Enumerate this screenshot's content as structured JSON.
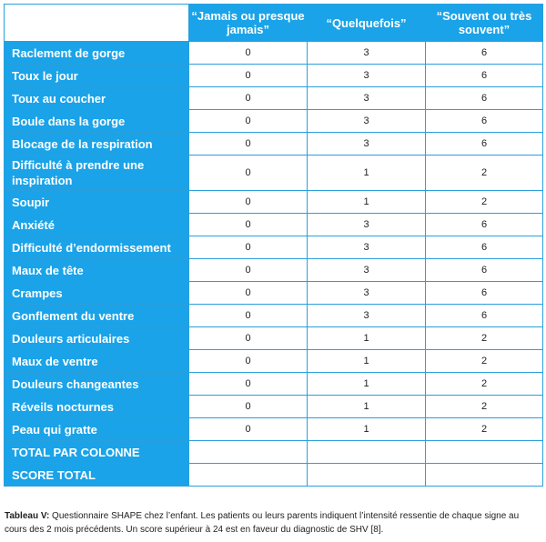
{
  "table": {
    "headers": [
      "",
      "“Jamais ou presque jamais”",
      "“Quelquefois”",
      "“Souvent ou très souvent”"
    ],
    "rows": [
      {
        "label": "Raclement de gorge",
        "values": [
          "0",
          "3",
          "6"
        ]
      },
      {
        "label": "Toux le jour",
        "values": [
          "0",
          "3",
          "6"
        ]
      },
      {
        "label": "Toux au coucher",
        "values": [
          "0",
          "3",
          "6"
        ]
      },
      {
        "label": "Boule dans la gorge",
        "values": [
          "0",
          "3",
          "6"
        ]
      },
      {
        "label": "Blocage de la respiration",
        "values": [
          "0",
          "3",
          "6"
        ]
      },
      {
        "label": "Difficulté à prendre une inspiration",
        "values": [
          "0",
          "1",
          "2"
        ]
      },
      {
        "label": "Soupir",
        "values": [
          "0",
          "1",
          "2"
        ]
      },
      {
        "label": "Anxiété",
        "values": [
          "0",
          "3",
          "6"
        ]
      },
      {
        "label": "Difficulté d’endormissement",
        "values": [
          "0",
          "3",
          "6"
        ]
      },
      {
        "label": "Maux de tête",
        "values": [
          "0",
          "3",
          "6"
        ]
      },
      {
        "label": "Crampes",
        "values": [
          "0",
          "3",
          "6"
        ]
      },
      {
        "label": "Gonflement du ventre",
        "values": [
          "0",
          "3",
          "6"
        ]
      },
      {
        "label": "Douleurs articulaires",
        "values": [
          "0",
          "1",
          "2"
        ]
      },
      {
        "label": "Maux de ventre",
        "values": [
          "0",
          "1",
          "2"
        ]
      },
      {
        "label": "Douleurs changeantes",
        "values": [
          "0",
          "1",
          "2"
        ]
      },
      {
        "label": "Réveils nocturnes",
        "values": [
          "0",
          "1",
          "2"
        ]
      },
      {
        "label": "Peau qui gratte",
        "values": [
          "0",
          "1",
          "2"
        ]
      },
      {
        "label": "TOTAL PAR COLONNE",
        "values": [
          "",
          "",
          ""
        ]
      },
      {
        "label": "SCORE TOTAL",
        "values": [
          "",
          "",
          ""
        ]
      }
    ]
  },
  "caption": {
    "label": "Tableau V:",
    "text": " Questionnaire SHAPE chez l’enfant. Les patients ou leurs parents indiquent l’intensité ressentie de chaque signe au cours des 2 mois précédents. Un score supérieur à 24 est en faveur du diagnostic de SHV [8]."
  }
}
